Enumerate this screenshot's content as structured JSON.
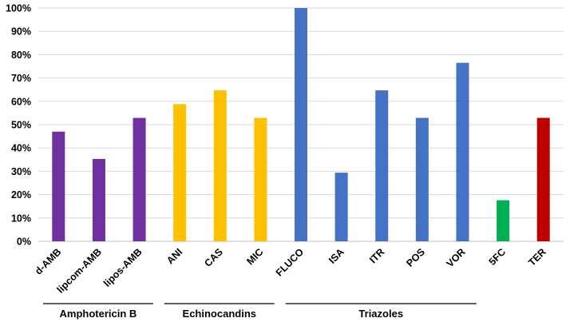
{
  "chart_data": {
    "type": "bar",
    "title": "",
    "xlabel": "",
    "ylabel": "",
    "ylim": [
      0,
      100
    ],
    "y_tick_step": 10,
    "y_tick_suffix": "%",
    "grid": true,
    "categories": [
      "d-AMB",
      "lipcom-AMB",
      "lipos-AMB",
      "ANI",
      "CAS",
      "MIC",
      "FLUCO",
      "ISA",
      "ITR",
      "POS",
      "VOR",
      "5FC",
      "TER"
    ],
    "values": [
      47,
      35.3,
      52.9,
      58.8,
      64.7,
      52.9,
      100,
      29.4,
      64.7,
      52.9,
      76.5,
      17.6,
      52.9
    ],
    "bar_colors": [
      "#7030A0",
      "#7030A0",
      "#7030A0",
      "#FFC000",
      "#FFC000",
      "#FFC000",
      "#4472C4",
      "#4472C4",
      "#4472C4",
      "#4472C4",
      "#4472C4",
      "#00B050",
      "#C00000"
    ],
    "groups": [
      {
        "label": "Amphotericin B",
        "start": 0,
        "end": 2
      },
      {
        "label": "Echinocandins",
        "start": 3,
        "end": 5
      },
      {
        "label": "Triazoles",
        "start": 6,
        "end": 10
      }
    ]
  }
}
